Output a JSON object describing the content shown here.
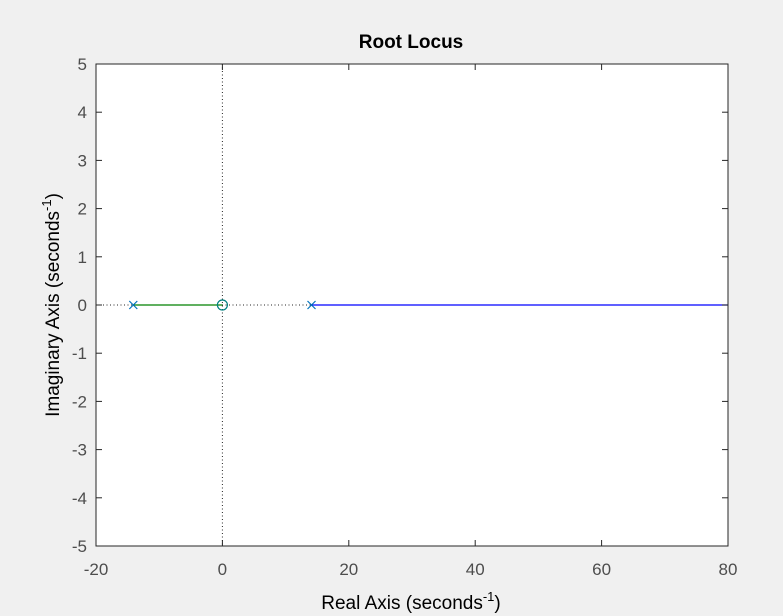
{
  "chart_data": {
    "type": "line",
    "title": "Root Locus",
    "xlabel": {
      "main": "Real Axis (seconds",
      "sup": "-1",
      "close": ")"
    },
    "ylabel": {
      "main": "Imaginary Axis (seconds",
      "sup": "-1",
      "close": ")"
    },
    "xlim": [
      -20,
      80
    ],
    "ylim": [
      -5,
      5
    ],
    "xticks": [
      -20,
      0,
      20,
      40,
      60,
      80
    ],
    "yticks": [
      5,
      4,
      3,
      2,
      1,
      0,
      -1,
      -2,
      -3,
      -4,
      -5
    ],
    "grid": false,
    "series": [
      {
        "color": "#0000ff",
        "x": [
          14.1,
          80
        ],
        "y": [
          0,
          0
        ]
      },
      {
        "color": "#008000",
        "x": [
          -14.1,
          0
        ],
        "y": [
          0,
          0
        ]
      }
    ],
    "poles": [
      {
        "x": -14.1,
        "y": 0,
        "color": "#0072bd"
      },
      {
        "x": 14.1,
        "y": 0,
        "color": "#0072bd"
      }
    ],
    "zeros": [
      {
        "x": 0,
        "y": 0,
        "color": "#008080"
      }
    ],
    "reference_lines": {
      "real_axis": true,
      "imaginary_axis": true,
      "style": "dotted"
    }
  },
  "colors": {
    "figure_bg": "#f0f0f0",
    "axes_bg": "#ffffff",
    "axes_edge": "#262626",
    "tick_text": "#4d4d4d"
  }
}
